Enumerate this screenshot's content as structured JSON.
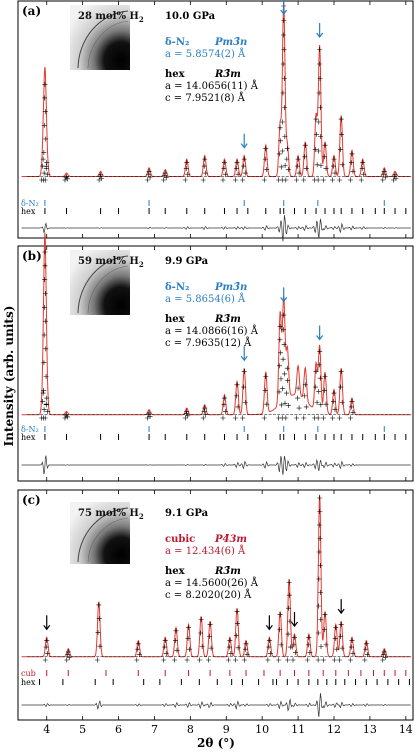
{
  "y_axis_label": "Intensity (arb. units)",
  "x_axis_label": "2θ (°)",
  "x_ticks": [
    "4",
    "5",
    "6",
    "7",
    "8",
    "9",
    "10",
    "11",
    "12",
    "13",
    "14"
  ],
  "colors": {
    "data": "#000000",
    "fit": "#e23b2f",
    "delta": "#2b7fc3",
    "cub": "#c0182f",
    "hex": "#000000",
    "diff": "#333333"
  },
  "panels": [
    {
      "tag": "(a)",
      "composition": "28 mol% H",
      "pressure": "10.0 GPa",
      "phases": [
        {
          "name": "δ-N₂",
          "group": "Pm3̄n",
          "lines": [
            "a = 5.8574(2) Å"
          ],
          "color": "#2b7fc3"
        },
        {
          "name": "hex",
          "group": "R3̄m",
          "lines": [
            "a = 14.0656(11) Å",
            "c = 7.9521(8) Å"
          ],
          "color": "#000000"
        }
      ],
      "tick_rows": [
        {
          "label": "δ-N₂",
          "color": "#2b7fc3",
          "positions": [
            3.95,
            6.85,
            9.5,
            10.6,
            11.55,
            13.4
          ]
        },
        {
          "label": "hex",
          "color": "#000000",
          "positions": [
            3.95,
            4.55,
            5.5,
            6.0,
            6.85,
            7.3,
            7.9,
            8.4,
            8.95,
            9.3,
            9.6,
            10.1,
            10.5,
            10.6,
            10.9,
            11.2,
            11.5,
            11.75,
            12.0,
            12.2,
            12.5,
            12.8,
            13.15,
            13.4,
            13.7,
            14.0
          ]
        }
      ],
      "arrows": [
        9.5,
        10.6,
        11.6
      ]
    },
    {
      "tag": "(b)",
      "composition": "59 mol% H",
      "pressure": "9.9 GPa",
      "phases": [
        {
          "name": "δ-N₂",
          "group": "Pm3̄n",
          "lines": [
            "a = 5.8654(6) Å"
          ],
          "color": "#2b7fc3"
        },
        {
          "name": "hex",
          "group": "R3̄m",
          "lines": [
            "a = 14.0866(16) Å",
            "c = 7.9635(12) Å"
          ],
          "color": "#000000"
        }
      ],
      "tick_rows": [
        {
          "label": "δ-N₂",
          "color": "#2b7fc3",
          "positions": [
            3.95,
            6.85,
            9.5,
            10.6,
            11.55,
            13.4
          ]
        },
        {
          "label": "hex",
          "color": "#000000",
          "positions": [
            3.95,
            4.55,
            5.5,
            6.0,
            6.85,
            7.3,
            7.9,
            8.4,
            8.95,
            9.3,
            9.6,
            10.1,
            10.5,
            10.6,
            10.9,
            11.2,
            11.5,
            11.75,
            12.0,
            12.2,
            12.5,
            12.8,
            13.15,
            13.4,
            13.7,
            14.0
          ]
        }
      ],
      "arrows": [
        9.5,
        10.6,
        11.6
      ]
    },
    {
      "tag": "(c)",
      "composition": "75 mol% H",
      "pressure": "9.1 GPa",
      "phases": [
        {
          "name": "cubic",
          "group": "P4̄3m",
          "lines": [
            "a = 12.434(6) Å"
          ],
          "color": "#c0182f"
        },
        {
          "name": "hex",
          "group": "R3̄m",
          "lines": [
            "a = 14.5600(26) Å",
            "c = 8.2020(20) Å"
          ],
          "color": "#000000"
        }
      ],
      "tick_rows": [
        {
          "label": "cub",
          "color": "#c0182f",
          "positions": [
            4.0,
            4.6,
            5.65,
            6.55,
            7.3,
            7.95,
            8.55,
            9.1,
            9.55,
            10.05,
            10.5,
            10.9,
            11.3,
            11.7,
            12.05,
            12.4,
            12.75,
            13.1,
            13.4,
            13.7,
            14.0
          ]
        },
        {
          "label": "hex",
          "color": "#000000",
          "positions": [
            3.8,
            4.45,
            5.35,
            5.85,
            6.7,
            7.15,
            7.75,
            8.25,
            8.75,
            9.15,
            9.45,
            9.9,
            10.3,
            10.4,
            10.7,
            11.0,
            11.3,
            11.55,
            11.8,
            12.05,
            12.3,
            12.6,
            12.9,
            13.2,
            13.5,
            13.8,
            14.1
          ]
        }
      ],
      "arrows": [
        4.0,
        10.2,
        10.9,
        12.2
      ]
    }
  ],
  "chart_data": [
    {
      "type": "line",
      "title": "",
      "xlabel": "2θ (°)",
      "ylabel": "Intensity (arb. units)",
      "xlim": [
        3.2,
        14.2
      ],
      "series": [
        {
          "x": [
            3.9,
            3.95,
            4.0,
            4.55,
            5.5,
            6.85,
            7.3,
            7.9,
            8.4,
            8.95,
            9.3,
            9.5,
            10.1,
            10.5,
            10.6,
            10.7,
            11.0,
            11.2,
            11.5,
            11.6,
            11.75,
            12.0,
            12.2,
            12.5,
            12.8,
            13.4,
            13.7
          ],
          "values": [
            0.12,
            0.55,
            0.1,
            0.02,
            0.03,
            0.05,
            0.04,
            0.1,
            0.12,
            0.1,
            0.1,
            0.12,
            0.18,
            0.3,
            1.0,
            0.18,
            0.12,
            0.2,
            0.35,
            0.75,
            0.2,
            0.12,
            0.35,
            0.15,
            0.1,
            0.05,
            0.03
          ]
        }
      ]
    },
    {
      "type": "line",
      "title": "",
      "xlabel": "2θ (°)",
      "ylabel": "Intensity (arb. units)",
      "xlim": [
        3.2,
        14.2
      ],
      "series": [
        {
          "x": [
            3.9,
            3.95,
            4.0,
            4.55,
            6.85,
            7.9,
            8.4,
            8.95,
            9.3,
            9.5,
            10.1,
            10.5,
            10.6,
            10.7,
            11.0,
            11.2,
            11.5,
            11.6,
            11.75,
            12.0,
            12.2,
            12.5
          ],
          "values": [
            0.15,
            1.0,
            0.12,
            0.02,
            0.03,
            0.04,
            0.06,
            0.12,
            0.2,
            0.28,
            0.25,
            0.55,
            0.62,
            0.3,
            0.18,
            0.2,
            0.28,
            0.4,
            0.25,
            0.15,
            0.28,
            0.1
          ]
        }
      ]
    },
    {
      "type": "line",
      "title": "",
      "xlabel": "2θ (°)",
      "ylabel": "Intensity (arb. units)",
      "xlim": [
        3.2,
        14.2
      ],
      "series": [
        {
          "x": [
            4.0,
            4.6,
            5.45,
            6.55,
            7.3,
            7.6,
            7.95,
            8.3,
            8.55,
            9.1,
            9.3,
            9.55,
            10.2,
            10.5,
            10.75,
            10.9,
            11.3,
            11.6,
            11.75,
            12.05,
            12.2,
            12.5,
            12.9,
            13.4
          ],
          "values": [
            0.12,
            0.05,
            0.34,
            0.1,
            0.12,
            0.18,
            0.2,
            0.25,
            0.22,
            0.12,
            0.3,
            0.1,
            0.12,
            0.28,
            0.48,
            0.14,
            0.14,
            1.0,
            0.28,
            0.2,
            0.22,
            0.12,
            0.1,
            0.05
          ]
        }
      ]
    }
  ]
}
